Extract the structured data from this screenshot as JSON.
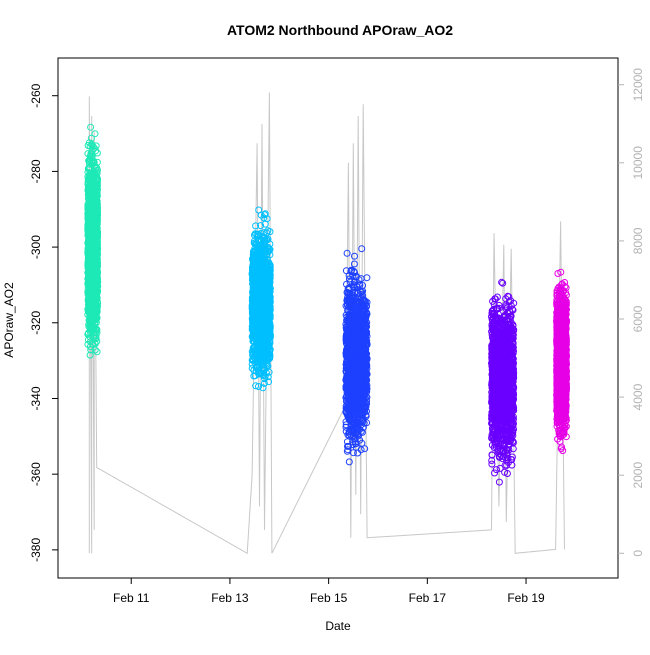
{
  "chart_data": {
    "type": "scatter",
    "title": "ATOM2 Northbound APOraw_AO2",
    "xlabel": "Date",
    "ylabel": "APOraw_AO2",
    "x_ticks": [
      "Feb 11",
      "Feb 13",
      "Feb 15",
      "Feb 17",
      "Feb 19"
    ],
    "x_tick_days": [
      11,
      13,
      15,
      17,
      19
    ],
    "xlim": [
      9.8,
      20.6
    ],
    "ylim": [
      -384,
      -254
    ],
    "y_ticks": [
      -380,
      -360,
      -340,
      -320,
      -300,
      -280,
      -260
    ],
    "y2lim": [
      -300,
      12300
    ],
    "y2_ticks": [
      0,
      2000,
      4000,
      6000,
      8000,
      10000,
      12000
    ],
    "grid": false,
    "series": [
      {
        "color": "#1de9b6",
        "x_range": [
          10.12,
          10.32
        ],
        "y_center": -300,
        "y_min": -343,
        "y_max": -257
      },
      {
        "color": "#00bfff",
        "x_range": [
          13.45,
          13.82
        ],
        "y_center": -315,
        "y_min": -347,
        "y_max": -281
      },
      {
        "color": "#1e40ff",
        "x_range": [
          15.35,
          15.78
        ],
        "y_center": -330,
        "y_min": -371,
        "y_max": -294
      },
      {
        "color": "#6a00ff",
        "x_range": [
          18.3,
          18.75
        ],
        "y_center": -335,
        "y_min": -380,
        "y_max": -305
      },
      {
        "color": "#e600e6",
        "x_range": [
          19.62,
          19.82
        ],
        "y_center": -330,
        "y_min": -374,
        "y_max": -305
      }
    ],
    "secondary_line": {
      "color": "#c8c8c8",
      "points": [
        [
          10.15,
          0
        ],
        [
          10.15,
          11700
        ],
        [
          10.2,
          0
        ],
        [
          10.2,
          11200
        ],
        [
          10.25,
          600
        ],
        [
          10.25,
          10800
        ],
        [
          10.3,
          2200
        ],
        [
          13.35,
          0
        ],
        [
          13.45,
          2000
        ],
        [
          13.55,
          10500
        ],
        [
          13.6,
          1200
        ],
        [
          13.65,
          11000
        ],
        [
          13.7,
          600
        ],
        [
          13.8,
          11800
        ],
        [
          13.85,
          0
        ],
        [
          15.35,
          3800
        ],
        [
          15.4,
          10000
        ],
        [
          15.45,
          400
        ],
        [
          15.5,
          10500
        ],
        [
          15.55,
          1500
        ],
        [
          15.6,
          11200
        ],
        [
          15.65,
          1000
        ],
        [
          15.7,
          11500
        ],
        [
          15.78,
          400
        ],
        [
          18.3,
          600
        ],
        [
          18.35,
          8200
        ],
        [
          18.45,
          1200
        ],
        [
          18.55,
          7900
        ],
        [
          18.6,
          800
        ],
        [
          18.7,
          7800
        ],
        [
          18.78,
          0
        ],
        [
          19.6,
          100
        ],
        [
          19.7,
          8500
        ],
        [
          19.78,
          100
        ]
      ]
    }
  }
}
